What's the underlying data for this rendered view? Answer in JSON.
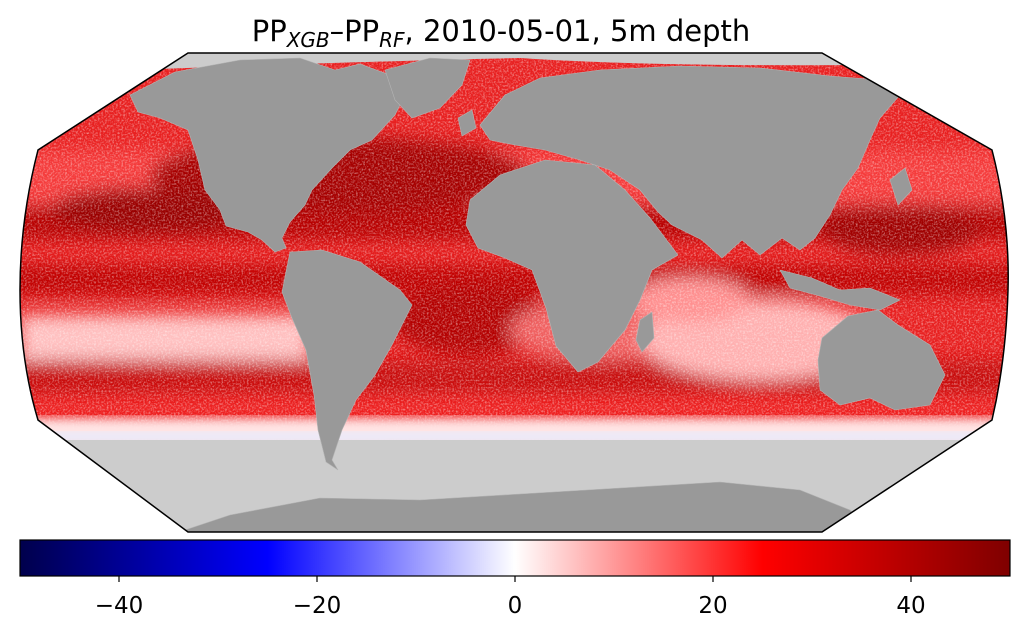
{
  "title": {
    "prefix": "PP",
    "sub1": "XGB",
    "dash": "–PP",
    "sub2": "RF",
    "suffix": ", 2010-05-01, 5m depth"
  },
  "colorbar": {
    "min": -50,
    "max": 50,
    "ticks": [
      -40,
      -20,
      0,
      20,
      40
    ],
    "tick_labels": [
      "−40",
      "−20",
      "0",
      "20",
      "40"
    ],
    "stops": [
      {
        "value": -50,
        "color": "#00004c"
      },
      {
        "value": -25,
        "color": "#0000ff"
      },
      {
        "value": 0,
        "color": "#ffffff"
      },
      {
        "value": 25,
        "color": "#ff0000"
      },
      {
        "value": 50,
        "color": "#7f0000"
      }
    ]
  },
  "colors": {
    "land": "#999999",
    "no_data": "#cccccc",
    "border": "#000000"
  }
}
